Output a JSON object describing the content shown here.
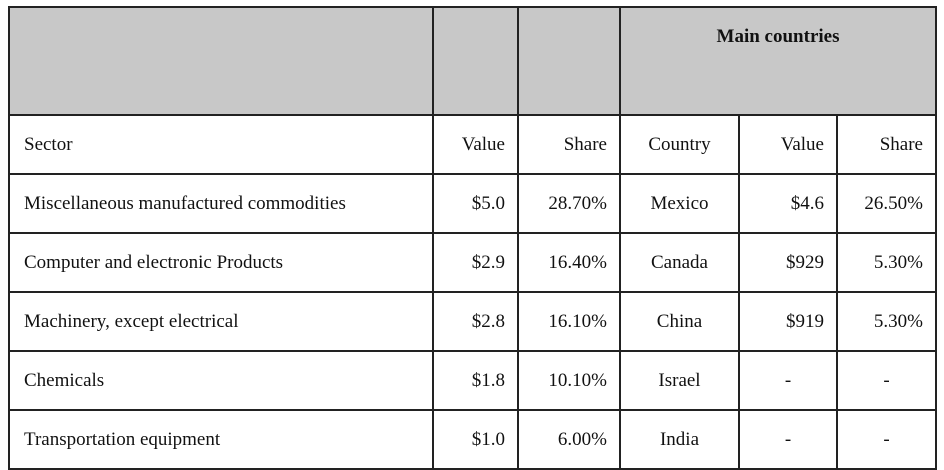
{
  "table": {
    "group_header": "Main countries",
    "columns": [
      "Sector",
      "Value",
      "Share",
      "Country",
      "Value",
      "Share"
    ],
    "rows": [
      [
        "Miscellaneous manufactured commodities",
        "$5.0",
        "28.70%",
        "Mexico",
        "$4.6",
        "26.50%"
      ],
      [
        "Computer and electronic Products",
        "$2.9",
        "16.40%",
        "Canada",
        "$929",
        "5.30%"
      ],
      [
        "Machinery, except electrical",
        "$2.8",
        "16.10%",
        "China",
        "$919",
        "5.30%"
      ],
      [
        "Chemicals",
        "$1.8",
        "10.10%",
        "Israel",
        "-",
        "-"
      ],
      [
        "Transportation equipment",
        "$1.0",
        "6.00%",
        "India",
        "-",
        "-"
      ]
    ]
  }
}
